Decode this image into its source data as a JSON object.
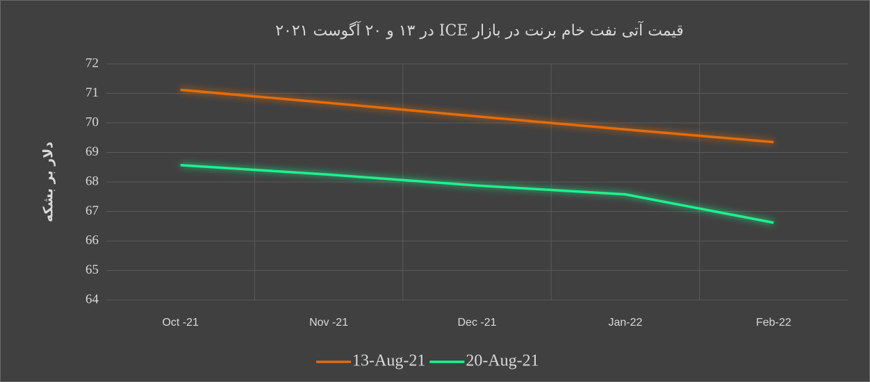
{
  "chart_data": {
    "type": "line",
    "title": "قیمت آتی نفت خام برنت در بازار  ICE در ۱۳ و ۲۰ آگوست ۲۰۲۱",
    "y_label": "دلار بر بشکه",
    "categories": [
      "Oct -21",
      "Nov -21",
      "Dec -21",
      "Jan-22",
      "Feb-22"
    ],
    "series": [
      {
        "name": "13-Aug-21",
        "color": "#e36c09",
        "values": [
          71.12,
          70.68,
          70.22,
          69.78,
          69.35
        ]
      },
      {
        "name": "20-Aug-21",
        "color": "#1ef28e",
        "values": [
          68.57,
          68.25,
          67.88,
          67.58,
          66.62
        ]
      }
    ],
    "ylim": [
      64,
      72
    ],
    "yticks": [
      64,
      65,
      66,
      67,
      68,
      69,
      70,
      71,
      72
    ],
    "grid": true,
    "legend": "bottom"
  }
}
